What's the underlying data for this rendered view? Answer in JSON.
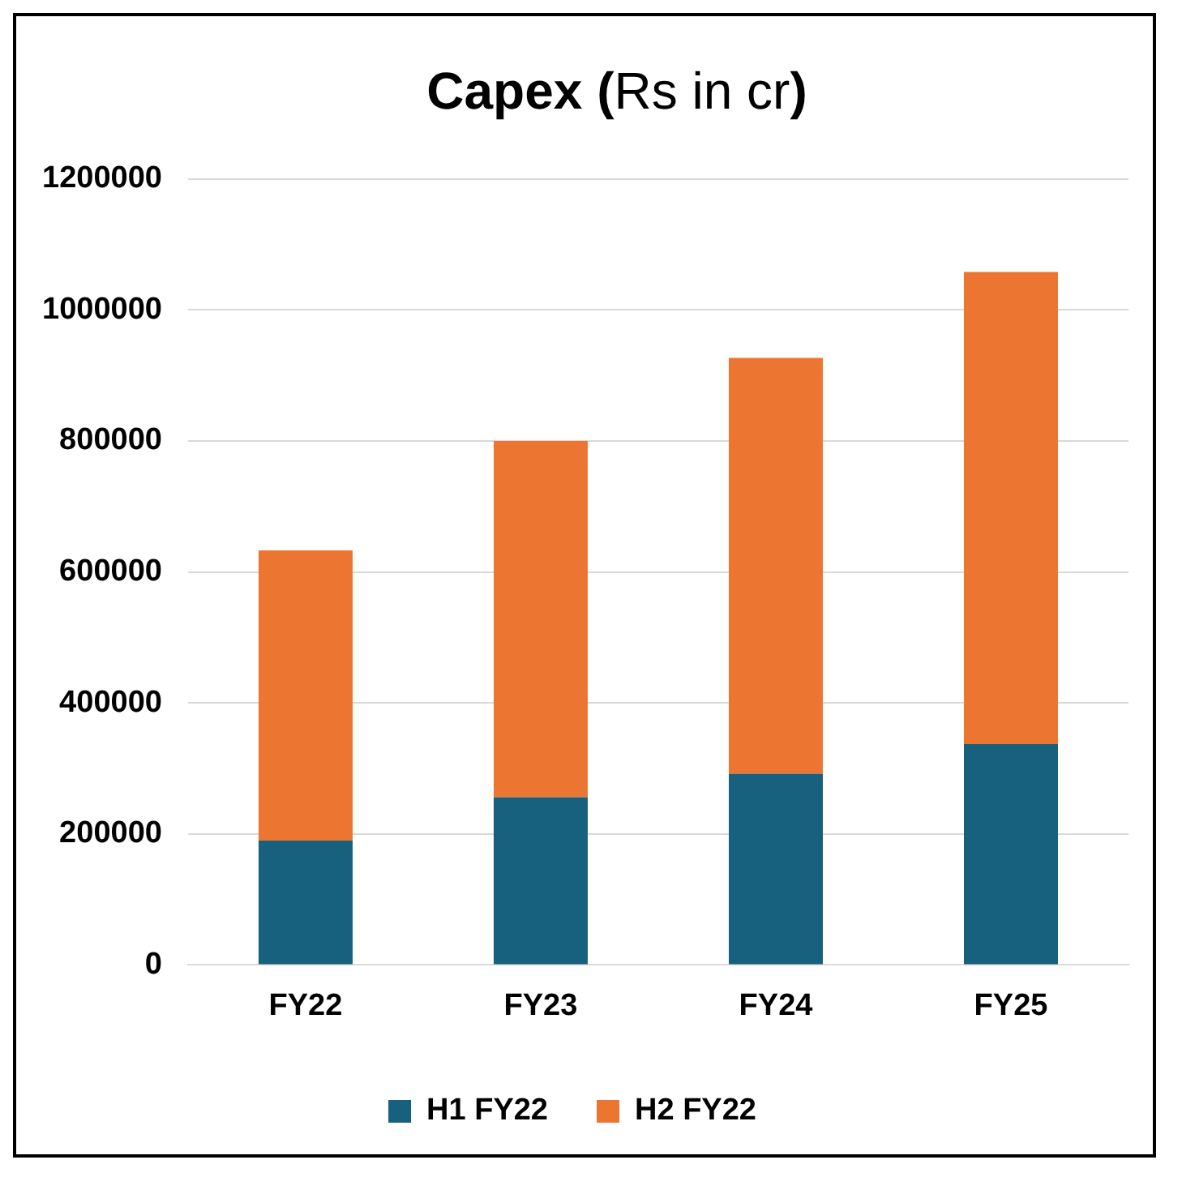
{
  "chart_data": {
    "type": "bar",
    "title": "Capex (Rs in cr)",
    "categories": [
      "FY22",
      "FY23",
      "FY24",
      "FY25"
    ],
    "stacked": true,
    "series": [
      {
        "name": "H1 FY22",
        "color": "#17607e",
        "values": [
          190000,
          256000,
          292000,
          337000
        ]
      },
      {
        "name": "H2 FY22",
        "color": "#ed7532",
        "values": [
          443000,
          544000,
          635000,
          721000
        ]
      }
    ],
    "ylim": [
      0,
      1200000
    ],
    "yticks": [
      0,
      200000,
      400000,
      600000,
      800000,
      1000000,
      1200000
    ],
    "grid": "y",
    "legend": "bottom"
  }
}
